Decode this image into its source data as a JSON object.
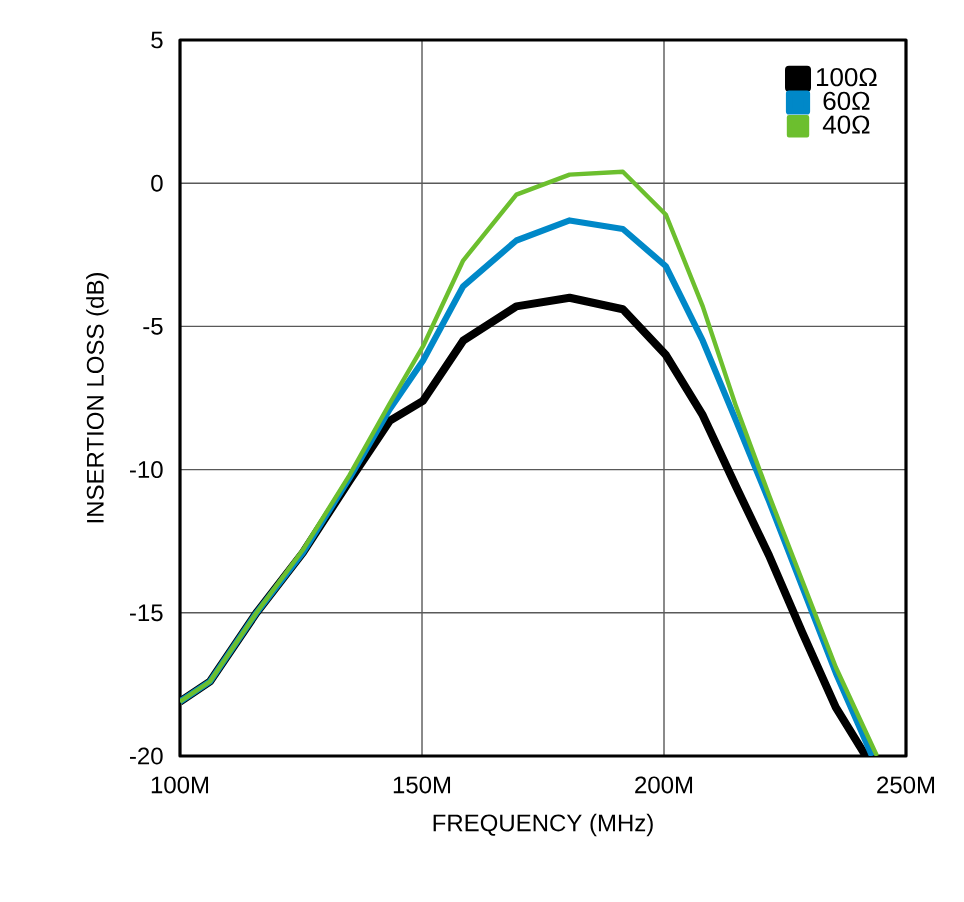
{
  "chart_data": {
    "type": "line",
    "xlabel": "FREQUENCY (MHz)",
    "ylabel": "INSERTION LOSS (dB)",
    "xlim": [
      100,
      250
    ],
    "ylim": [
      -20,
      5
    ],
    "xticks": [
      {
        "value": 100,
        "label": "100M"
      },
      {
        "value": 150,
        "label": "150M"
      },
      {
        "value": 200,
        "label": "200M"
      },
      {
        "value": 250,
        "label": "250M"
      }
    ],
    "yticks": [
      -20,
      -15,
      -10,
      -5,
      0,
      5
    ],
    "grid": true,
    "legend": "top right",
    "marker": "none",
    "line_style": "solid",
    "series": [
      {
        "name": "100Ω",
        "color": "#000000",
        "x": [
          100,
          106.2,
          115.8,
          125.4,
          135,
          143.3,
          150.2,
          158.5,
          169.5,
          180.5,
          191.5,
          200.4,
          208,
          214.9,
          221.7,
          228.6,
          235.5,
          241.7
        ],
        "values": [
          -18.1,
          -17.4,
          -15.0,
          -12.9,
          -10.4,
          -8.3,
          -7.6,
          -5.5,
          -4.3,
          -4.0,
          -4.4,
          -6.0,
          -8.1,
          -10.6,
          -13.0,
          -15.7,
          -18.3,
          -20
        ]
      },
      {
        "name": "60Ω",
        "color": "#0088c8",
        "x": [
          100,
          106.2,
          115.8,
          125.4,
          135,
          143.3,
          150.2,
          158.5,
          169.5,
          180.5,
          191.5,
          200.4,
          208,
          214.9,
          221.7,
          228.6,
          235.5,
          243
        ],
        "values": [
          -18.1,
          -17.4,
          -15.0,
          -12.9,
          -10.3,
          -7.9,
          -6.2,
          -3.6,
          -2.0,
          -1.3,
          -1.6,
          -2.9,
          -5.5,
          -8.3,
          -11.1,
          -14.1,
          -17.1,
          -20
        ]
      },
      {
        "name": "40Ω",
        "color": "#6cbf2e",
        "x": [
          100,
          106.2,
          115.8,
          125.4,
          135,
          143.3,
          150.2,
          158.5,
          169.5,
          180.5,
          191.5,
          200.4,
          208,
          214.9,
          221.7,
          228.6,
          235.5,
          244
        ],
        "values": [
          -18.1,
          -17.4,
          -15.0,
          -12.8,
          -10.2,
          -7.7,
          -5.7,
          -2.7,
          -0.4,
          0.3,
          0.4,
          -1.1,
          -4.3,
          -7.8,
          -10.9,
          -13.9,
          -16.9,
          -20
        ]
      }
    ]
  }
}
